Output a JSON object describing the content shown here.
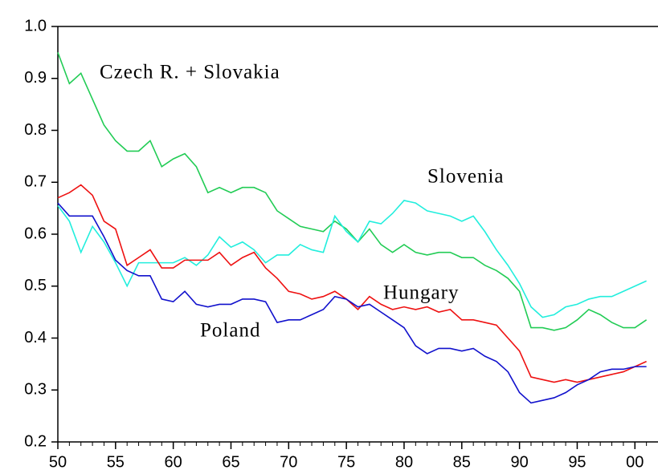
{
  "chart_data": {
    "type": "line",
    "x": [
      1950,
      1951,
      1952,
      1953,
      1954,
      1955,
      1956,
      1957,
      1958,
      1959,
      1960,
      1961,
      1962,
      1963,
      1964,
      1965,
      1966,
      1967,
      1968,
      1969,
      1970,
      1971,
      1972,
      1973,
      1974,
      1975,
      1976,
      1977,
      1978,
      1979,
      1980,
      1981,
      1982,
      1983,
      1984,
      1985,
      1986,
      1987,
      1988,
      1989,
      1990,
      1991,
      1992,
      1993,
      1994,
      1995,
      1996,
      1997,
      1998,
      1999,
      2000,
      2001
    ],
    "series": [
      {
        "name": "Czech R. + Slovakia",
        "color": "#22cc55",
        "values": [
          0.95,
          0.89,
          0.91,
          0.86,
          0.81,
          0.78,
          0.76,
          0.76,
          0.78,
          0.73,
          0.745,
          0.755,
          0.73,
          0.68,
          0.69,
          0.68,
          0.69,
          0.69,
          0.68,
          0.645,
          0.63,
          0.615,
          0.61,
          0.605,
          0.625,
          0.61,
          0.585,
          0.61,
          0.58,
          0.565,
          0.58,
          0.565,
          0.56,
          0.565,
          0.565,
          0.555,
          0.555,
          0.54,
          0.53,
          0.515,
          0.49,
          0.42,
          0.42,
          0.415,
          0.42,
          0.435,
          0.455,
          0.445,
          0.43,
          0.42,
          0.42,
          0.435
        ]
      },
      {
        "name": "Slovenia",
        "color": "#22eedd",
        "values": [
          0.655,
          0.625,
          0.565,
          0.615,
          0.585,
          0.545,
          0.5,
          0.545,
          0.545,
          0.545,
          0.545,
          0.555,
          0.54,
          0.56,
          0.595,
          0.575,
          0.585,
          0.57,
          0.545,
          0.56,
          0.56,
          0.58,
          0.57,
          0.565,
          0.635,
          0.605,
          0.585,
          0.625,
          0.62,
          0.64,
          0.665,
          0.66,
          0.645,
          0.64,
          0.635,
          0.625,
          0.635,
          0.605,
          0.57,
          0.54,
          0.505,
          0.46,
          0.44,
          0.445,
          0.46,
          0.465,
          0.475,
          0.48,
          0.48,
          0.49,
          0.5,
          0.51
        ]
      },
      {
        "name": "Hungary",
        "color": "#ee1111",
        "values": [
          0.67,
          0.68,
          0.695,
          0.675,
          0.625,
          0.61,
          0.54,
          0.555,
          0.57,
          0.535,
          0.535,
          0.55,
          0.55,
          0.55,
          0.565,
          0.54,
          0.555,
          0.565,
          0.535,
          0.515,
          0.49,
          0.485,
          0.475,
          0.48,
          0.49,
          0.475,
          0.455,
          0.48,
          0.465,
          0.455,
          0.46,
          0.455,
          0.46,
          0.45,
          0.455,
          0.435,
          0.435,
          0.43,
          0.425,
          0.4,
          0.375,
          0.325,
          0.32,
          0.315,
          0.32,
          0.315,
          0.32,
          0.325,
          0.33,
          0.335,
          0.345,
          0.355
        ]
      },
      {
        "name": "Poland",
        "color": "#1111cc",
        "values": [
          0.66,
          0.635,
          0.635,
          0.635,
          0.595,
          0.55,
          0.53,
          0.52,
          0.52,
          0.475,
          0.47,
          0.49,
          0.465,
          0.46,
          0.465,
          0.465,
          0.475,
          0.475,
          0.47,
          0.43,
          0.435,
          0.435,
          0.445,
          0.455,
          0.48,
          0.475,
          0.46,
          0.465,
          0.45,
          0.435,
          0.42,
          0.385,
          0.37,
          0.38,
          0.38,
          0.375,
          0.38,
          0.365,
          0.355,
          0.335,
          0.295,
          0.275,
          0.28,
          0.285,
          0.295,
          0.31,
          0.32,
          0.335,
          0.34,
          0.34,
          0.345,
          0.345
        ]
      }
    ],
    "xlim": [
      1950,
      2002
    ],
    "xticks": [
      {
        "value": 1950,
        "label": "50"
      },
      {
        "value": 1955,
        "label": "55"
      },
      {
        "value": 1960,
        "label": "60"
      },
      {
        "value": 1965,
        "label": "65"
      },
      {
        "value": 1970,
        "label": "70"
      },
      {
        "value": 1975,
        "label": "75"
      },
      {
        "value": 1980,
        "label": "80"
      },
      {
        "value": 1985,
        "label": "85"
      },
      {
        "value": 1990,
        "label": "90"
      },
      {
        "value": 1995,
        "label": "95"
      },
      {
        "value": 2000,
        "label": "00"
      }
    ],
    "ylim": [
      0.2,
      1
    ],
    "yticks": [
      0.2,
      0.3,
      0.4,
      0.5,
      0.6,
      0.7,
      0.8,
      0.9,
      {
        "value": 1,
        "label": "1.0"
      }
    ],
    "grid": false
  }
}
